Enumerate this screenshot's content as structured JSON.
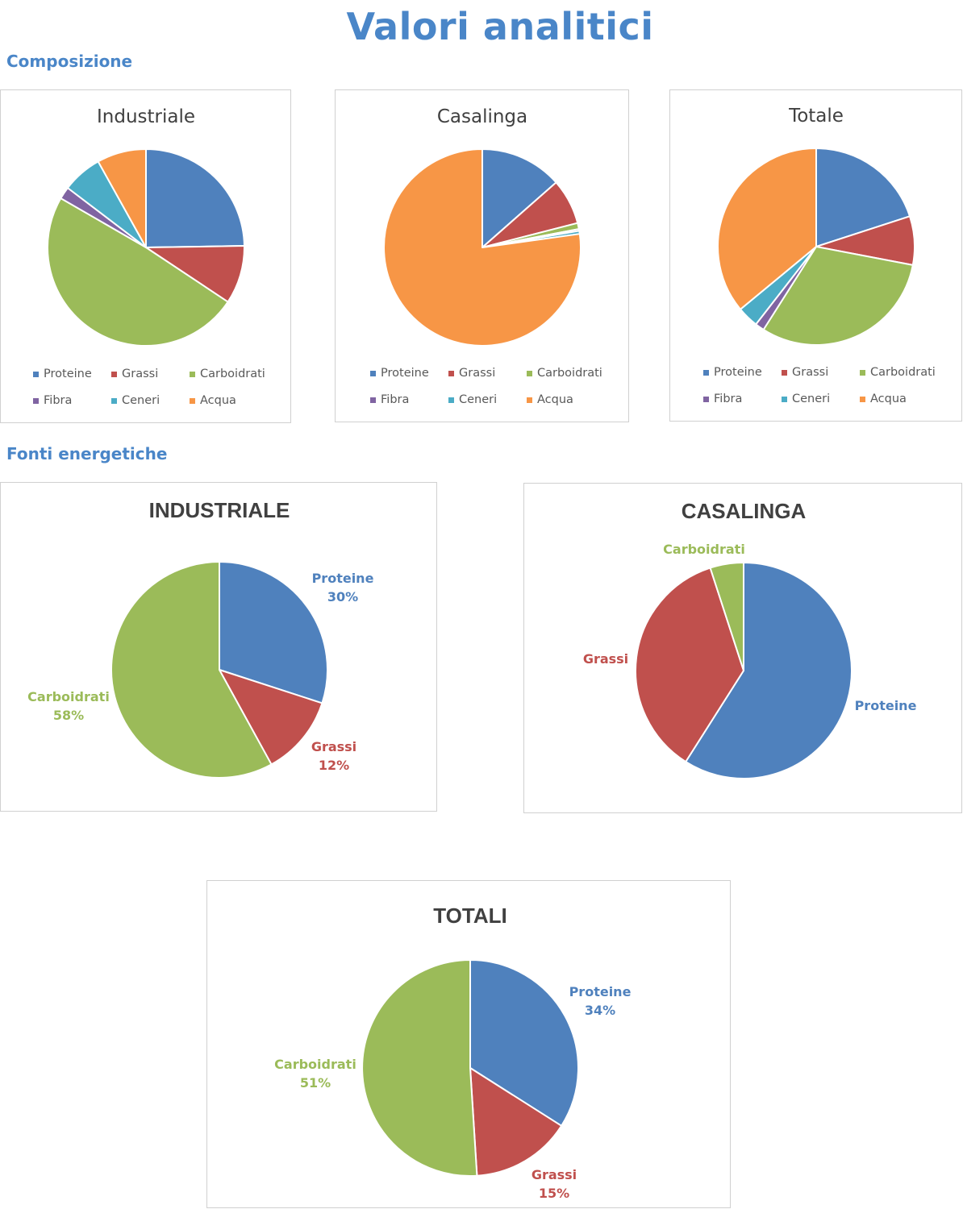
{
  "page": {
    "title": "Valori analitici",
    "section_composition": "Composizione",
    "section_energy": "Fonti energetiche"
  },
  "colors": {
    "title": "#4a86c8",
    "Proteine": "#4f81bd",
    "Grassi": "#c0504d",
    "Carboidrati": "#9bbb59",
    "Fibra": "#8064a2",
    "Ceneri": "#4bacc6",
    "Acqua": "#f79646"
  },
  "chart_data": [
    {
      "id": "comp-industriale",
      "type": "pie",
      "title": "Industriale",
      "categories": [
        "Proteine",
        "Grassi",
        "Carboidrati",
        "Fibra",
        "Ceneri",
        "Acqua"
      ],
      "values": [
        24.5,
        9.5,
        48.5,
        2,
        6.5,
        8
      ],
      "legend": "bottom"
    },
    {
      "id": "comp-casalinga",
      "type": "pie",
      "title": "Casalinga",
      "categories": [
        "Proteine",
        "Grassi",
        "Carboidrati",
        "Fibra",
        "Ceneri",
        "Acqua"
      ],
      "values": [
        13.5,
        7.5,
        1,
        0.3,
        0.5,
        77.2
      ],
      "legend": "bottom"
    },
    {
      "id": "comp-totale",
      "type": "pie",
      "title": "Totale",
      "categories": [
        "Proteine",
        "Grassi",
        "Carboidrati",
        "Fibra",
        "Ceneri",
        "Acqua"
      ],
      "values": [
        20,
        8,
        31,
        1.5,
        3.5,
        36
      ],
      "legend": "bottom"
    },
    {
      "id": "energy-industriale",
      "type": "pie",
      "title": "INDUSTRIALE",
      "categories": [
        "Proteine",
        "Grassi",
        "Carboidrati"
      ],
      "values": [
        30,
        12,
        58
      ],
      "labels": [
        "Proteine\n30%",
        "Grassi\n12%",
        "Carboidrati\n58%"
      ]
    },
    {
      "id": "energy-casalinga",
      "type": "pie",
      "title": "CASALINGA",
      "categories": [
        "Proteine",
        "Grassi",
        "Carboidrati"
      ],
      "values": [
        59,
        36,
        5
      ],
      "labels": [
        "Proteine",
        "Grassi",
        "Carboidrati"
      ]
    },
    {
      "id": "energy-totali",
      "type": "pie",
      "title": "TOTALI",
      "categories": [
        "Proteine",
        "Grassi",
        "Carboidrati"
      ],
      "values": [
        34,
        15,
        51
      ],
      "labels": [
        "Proteine\n34%",
        "Grassi\n15%",
        "Carboidrati\n51%"
      ]
    }
  ]
}
